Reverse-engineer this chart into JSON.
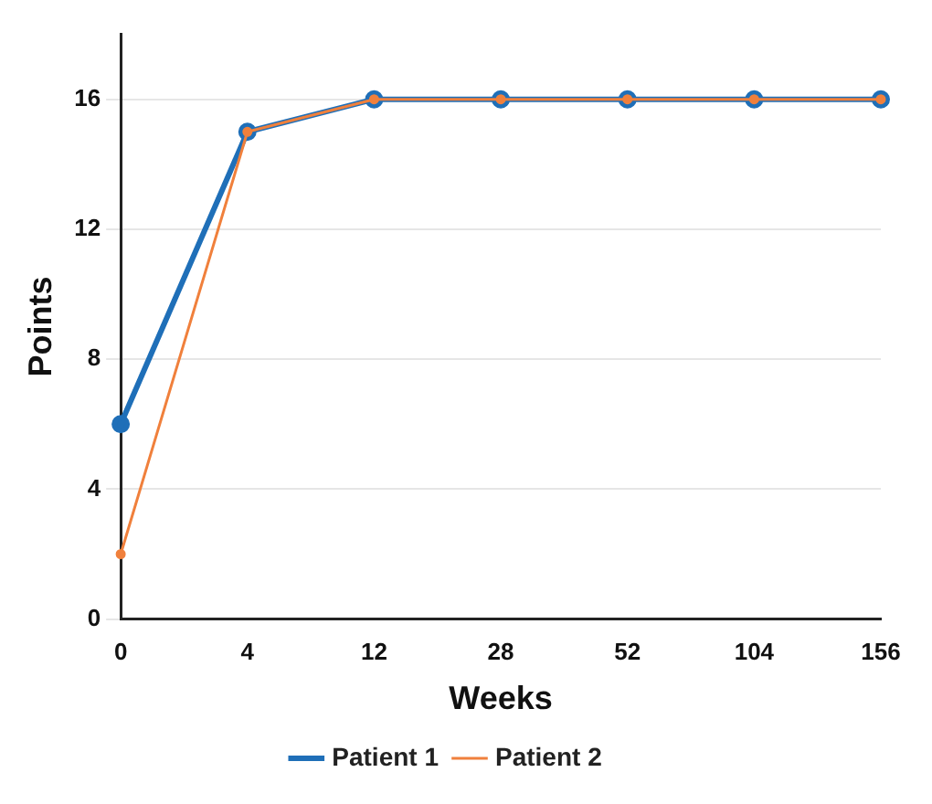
{
  "chart_data": {
    "type": "line",
    "xlabel": "Weeks",
    "ylabel": "Points",
    "categories": [
      "0",
      "4",
      "12",
      "28",
      "52",
      "104",
      "156"
    ],
    "series": [
      {
        "name": "Patient 1",
        "color": "#1f6fb8",
        "values": [
          6,
          15,
          16,
          16,
          16,
          16,
          16
        ]
      },
      {
        "name": "Patient 2",
        "color": "#f0803c",
        "values": [
          2,
          15,
          16,
          16,
          16,
          16,
          16
        ]
      }
    ],
    "ylim": [
      0,
      18
    ],
    "yticks": [
      0,
      4,
      8,
      12,
      16
    ],
    "grid": "y",
    "legend": "bottom",
    "marker": "circle",
    "line_style": "solid"
  }
}
